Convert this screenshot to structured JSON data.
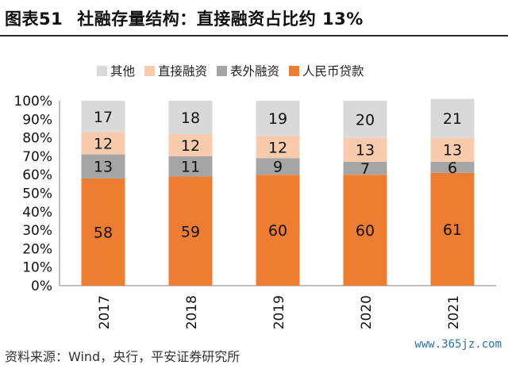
{
  "header": {
    "figure_label": "图表51",
    "title": "社融存量结构：直接融资占比约 13%"
  },
  "footer": {
    "source": "资料来源：Wind，央行，平安证券研究所"
  },
  "watermark": "www.365jz.com",
  "chart_data": {
    "type": "bar",
    "stacked": true,
    "percent": true,
    "categories": [
      "2017",
      "2018",
      "2019",
      "2020",
      "2021"
    ],
    "series": [
      {
        "name": "人民币贷款",
        "values": [
          58,
          59,
          60,
          60,
          61
        ],
        "color": "#ED7D31"
      },
      {
        "name": "表外融资",
        "values": [
          13,
          11,
          9,
          7,
          6
        ],
        "color": "#A5A5A5"
      },
      {
        "name": "直接融资",
        "values": [
          12,
          12,
          12,
          13,
          13
        ],
        "color": "#F8CBAD"
      },
      {
        "name": "其他",
        "values": [
          17,
          18,
          19,
          20,
          21
        ],
        "color": "#D9D9D9"
      }
    ],
    "legend_order": [
      "其他",
      "直接融资",
      "表外融资",
      "人民币贷款"
    ],
    "yticks": [
      "0%",
      "10%",
      "20%",
      "30%",
      "40%",
      "50%",
      "60%",
      "70%",
      "80%",
      "90%",
      "100%"
    ],
    "ylim": [
      0,
      100
    ],
    "legend_position": "top",
    "grid": false,
    "x_tick_rotation": "vertical"
  }
}
